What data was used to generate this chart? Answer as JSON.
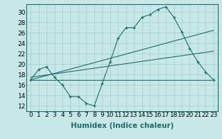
{
  "xlabel": "Humidex (Indice chaleur)",
  "background_color": "#c8e8e8",
  "line_color": "#1a6b6b",
  "xlim": [
    -0.5,
    23.5
  ],
  "ylim": [
    11.0,
    31.5
  ],
  "yticks": [
    12,
    14,
    16,
    18,
    20,
    22,
    24,
    26,
    28,
    30
  ],
  "xticks": [
    0,
    1,
    2,
    3,
    4,
    5,
    6,
    7,
    8,
    9,
    10,
    11,
    12,
    13,
    14,
    15,
    16,
    17,
    18,
    19,
    20,
    21,
    22,
    23
  ],
  "line1_x": [
    0,
    1,
    2,
    3,
    4,
    5,
    6,
    7,
    8,
    9,
    10,
    11,
    12,
    13,
    14,
    15,
    16,
    17,
    18,
    19,
    20,
    21,
    22,
    23
  ],
  "line1_y": [
    17.0,
    19.0,
    19.5,
    17.5,
    16.0,
    13.8,
    13.8,
    12.5,
    12.0,
    16.3,
    20.5,
    25.0,
    27.0,
    27.0,
    29.0,
    29.5,
    30.5,
    31.0,
    29.0,
    26.2,
    23.0,
    20.5,
    18.5,
    17.0
  ],
  "line2_x": [
    0,
    23
  ],
  "line2_y": [
    17.0,
    17.0
  ],
  "line3_x": [
    0,
    23
  ],
  "line3_y": [
    17.5,
    22.5
  ],
  "line4_x": [
    0,
    23
  ],
  "line4_y": [
    17.0,
    26.5
  ],
  "grid_color": "#9dcfcf",
  "tick_fontsize": 6.5,
  "xlabel_fontsize": 7.5
}
